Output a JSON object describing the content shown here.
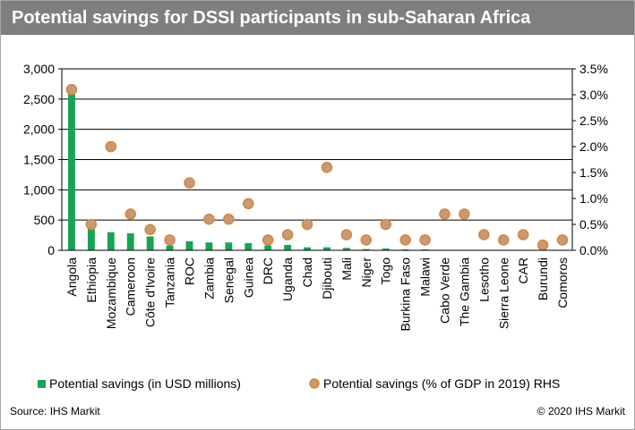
{
  "title": "Potential savings for DSSI participants in sub-Saharan Africa",
  "source": "Source: IHS Markit",
  "copyright": "© 2020 IHS Markit",
  "colors": {
    "bar": "#1aa354",
    "dot_fill": "#c49a7c",
    "dot_stroke": "#d9873a",
    "grid": "#000000",
    "title_bg": "#7f7f7f"
  },
  "chart_data": {
    "type": "bar",
    "categories": [
      "Angola",
      "Ethiopia",
      "Mozambique",
      "Cameroon",
      "Côte d'Ivoire",
      "Tanzania",
      "ROC",
      "Zambia",
      "Senegal",
      "Guinea",
      "DRC",
      "Uganda",
      "Chad",
      "Djibouti",
      "Mali",
      "Niger",
      "Togo",
      "Burkina Faso",
      "Malawi",
      "Cabo Verde",
      "The Gambia",
      "Lesotho",
      "Sierra Leone",
      "CAR",
      "Burundi",
      "Comoros"
    ],
    "series": [
      {
        "name": "Potential savings (in USD millions)",
        "type": "bar",
        "axis": "left",
        "values": [
          2600,
          370,
          300,
          280,
          230,
          80,
          150,
          130,
          130,
          120,
          80,
          90,
          50,
          50,
          40,
          20,
          30,
          15,
          15,
          5,
          5,
          5,
          5,
          5,
          2,
          2
        ]
      },
      {
        "name": "Potential savings (% of GDP in 2019) RHS",
        "type": "scatter",
        "axis": "right",
        "values": [
          3.1,
          0.5,
          2.0,
          0.7,
          0.4,
          0.2,
          1.3,
          0.6,
          0.6,
          0.9,
          0.2,
          0.3,
          0.5,
          1.6,
          0.3,
          0.2,
          0.5,
          0.2,
          0.2,
          0.7,
          0.7,
          0.3,
          0.2,
          0.3,
          0.1,
          0.2
        ]
      }
    ],
    "y_left": {
      "ylim": [
        0,
        3000
      ],
      "ticks": [
        0,
        500,
        1000,
        1500,
        2000,
        2500,
        3000
      ],
      "tick_labels": [
        "0",
        "500",
        "1,000",
        "1,500",
        "2,000",
        "2,500",
        "3,000"
      ]
    },
    "y_right": {
      "ylim": [
        0,
        3.5
      ],
      "ticks": [
        0,
        0.5,
        1.0,
        1.5,
        2.0,
        2.5,
        3.0,
        3.5
      ],
      "tick_labels": [
        "0.0%",
        "0.5%",
        "1.0%",
        "1.5%",
        "2.0%",
        "2.5%",
        "3.0%",
        "3.5%"
      ]
    },
    "grid": true,
    "legend": "bottom"
  }
}
